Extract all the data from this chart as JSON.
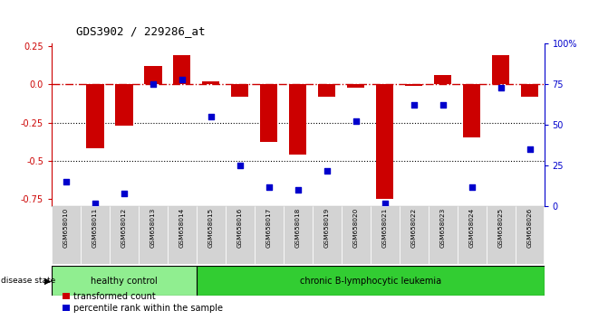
{
  "title": "GDS3902 / 229286_at",
  "samples": [
    "GSM658010",
    "GSM658011",
    "GSM658012",
    "GSM658013",
    "GSM658014",
    "GSM658015",
    "GSM658016",
    "GSM658017",
    "GSM658018",
    "GSM658019",
    "GSM658020",
    "GSM658021",
    "GSM658022",
    "GSM658023",
    "GSM658024",
    "GSM658025",
    "GSM658026"
  ],
  "bar_values": [
    0.0,
    -0.42,
    -0.27,
    0.12,
    0.19,
    0.02,
    -0.08,
    -0.38,
    -0.46,
    -0.08,
    -0.02,
    -0.75,
    -0.01,
    0.06,
    -0.35,
    0.19,
    -0.08
  ],
  "pct_values": [
    15,
    2,
    8,
    75,
    78,
    55,
    25,
    12,
    10,
    22,
    52,
    2,
    62,
    62,
    12,
    73,
    35
  ],
  "bar_color": "#cc0000",
  "dot_color": "#0000cc",
  "ylim_left": [
    -0.8,
    0.27
  ],
  "yticks_left": [
    0.25,
    0.0,
    -0.25,
    -0.5,
    -0.75
  ],
  "yticks_right": [
    100,
    75,
    50,
    25,
    0
  ],
  "dotted_lines": [
    -0.25,
    -0.5
  ],
  "healthy_count": 5,
  "healthy_label": "healthy control",
  "disease_label": "chronic B-lymphocytic leukemia",
  "healthy_color": "#90ee90",
  "disease_color": "#32cd32",
  "group_label": "disease state",
  "legend_bar_label": "transformed count",
  "legend_dot_label": "percentile rank within the sample",
  "bar_width": 0.6,
  "bg_color": "#ffffff",
  "axis_color_left": "#cc0000",
  "axis_color_right": "#0000cc"
}
